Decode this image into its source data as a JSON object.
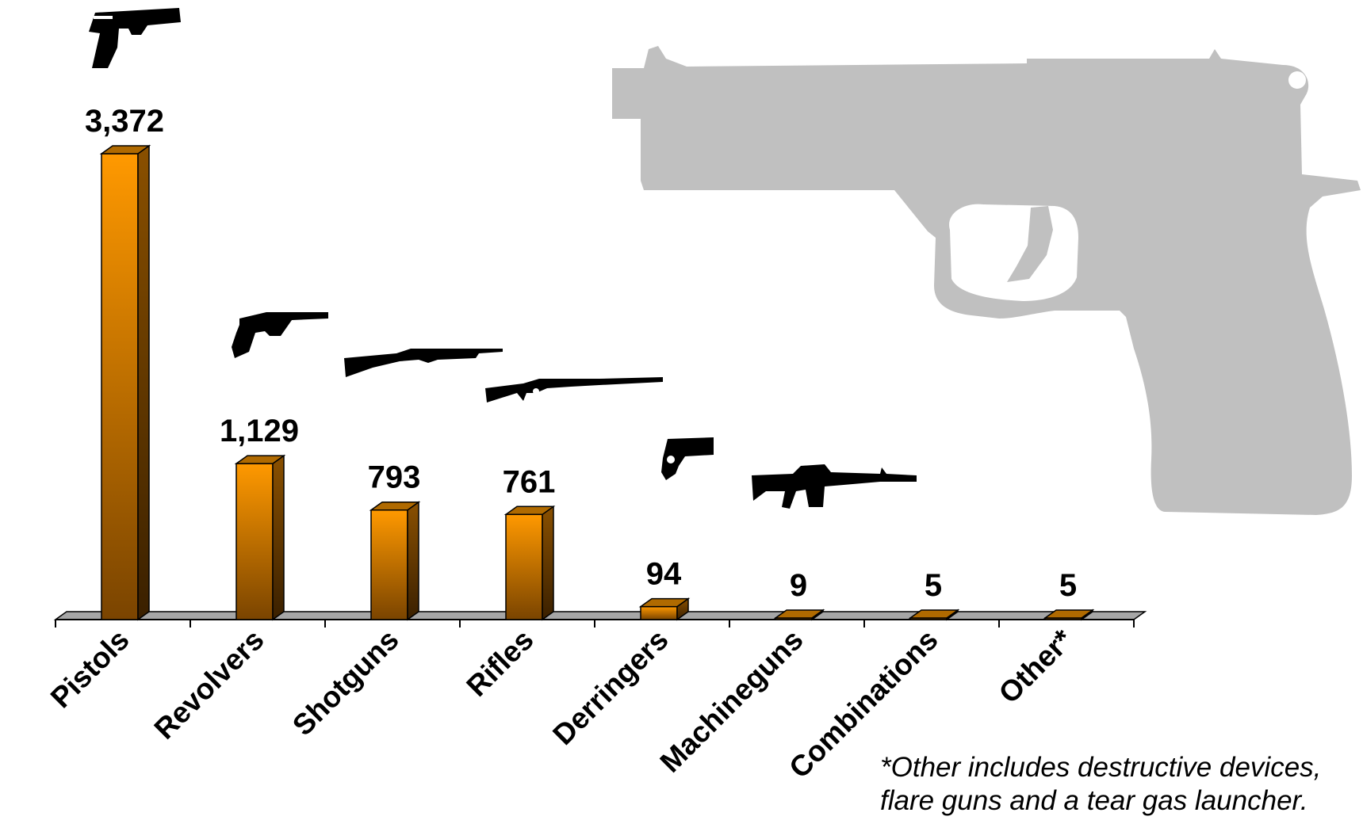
{
  "chart_data": {
    "type": "bar",
    "categories": [
      "Pistols",
      "Revolvers",
      "Shotguns",
      "Rifles",
      "Derringers",
      "Machineguns",
      "Combinations",
      "Other*"
    ],
    "values": [
      3372,
      1129,
      793,
      761,
      94,
      9,
      5,
      5
    ],
    "value_labels": [
      "3,372",
      "1,129",
      "793",
      "761",
      "94",
      "9",
      "5",
      "5"
    ],
    "category_icons": [
      "pistol-icon",
      "revolver-icon",
      "shotgun-icon",
      "rifle-icon",
      "derringer-icon",
      "machinegun-icon",
      null,
      null
    ],
    "ylim": [
      0,
      3372
    ],
    "grid": false,
    "bar_color": "#FF9900",
    "bar_dark_color": "#7A4400",
    "floor_color": "#A6A6A6",
    "watermark_color": "#C0C0C0"
  },
  "footnote": {
    "line1": "*Other includes destructive devices,",
    "line2": "flare guns and a tear gas launcher."
  }
}
